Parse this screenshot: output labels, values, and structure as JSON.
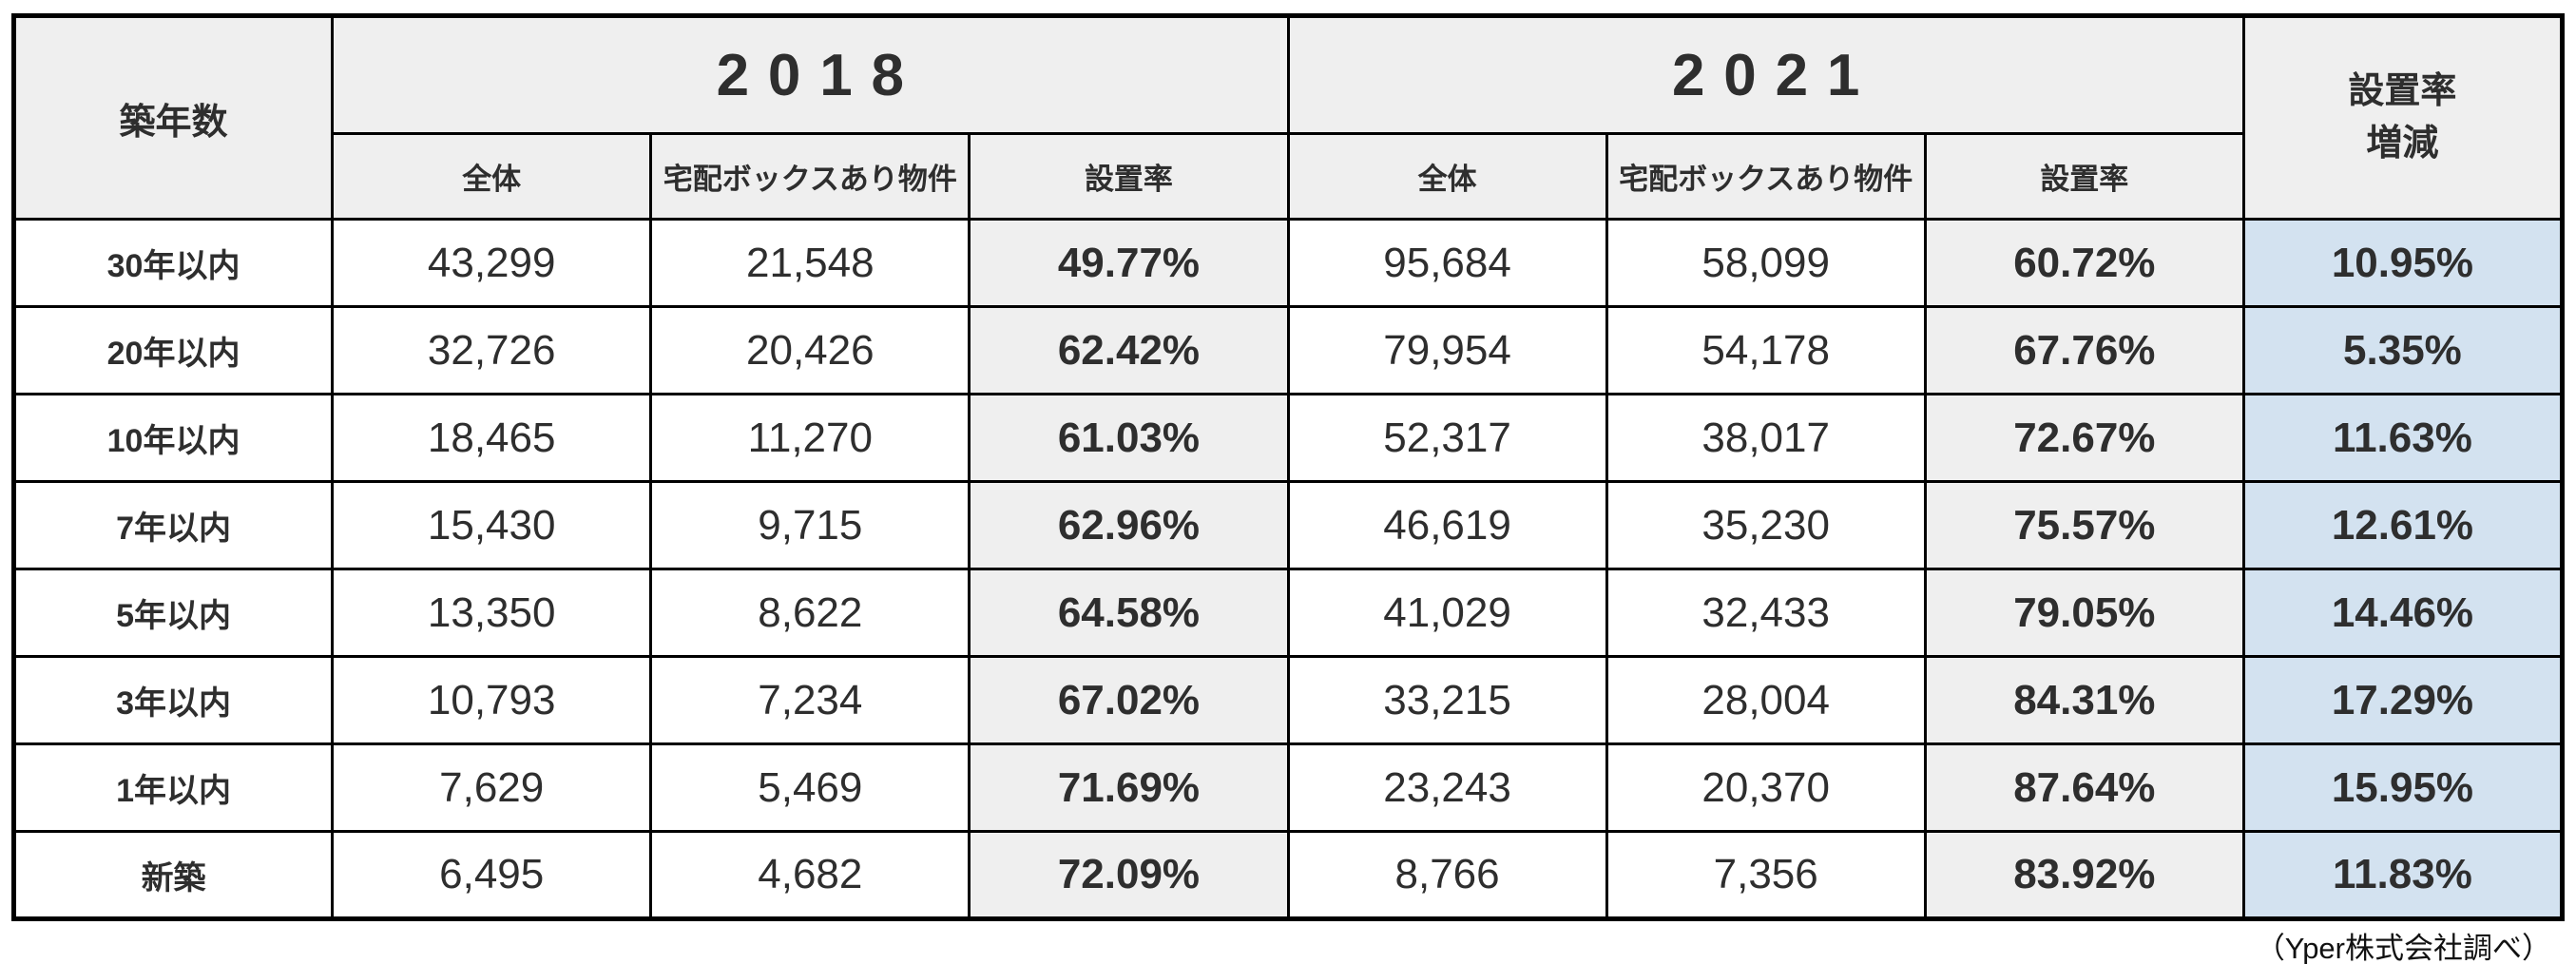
{
  "header": {
    "age_label": "築年数",
    "year_2018": "2018",
    "year_2021": "2021",
    "sub": {
      "total": "全体",
      "box": "宅配ボックスあり物件",
      "rate": "設置率"
    },
    "delta_line1": "設置率",
    "delta_line2": "増減"
  },
  "footer": {
    "source": "（Yper株式会社調べ）"
  },
  "colors": {
    "header_bg": "#efefef",
    "rate_bg": "#efefef",
    "delta_bg": "#d3e2f0",
    "border": "#000000",
    "text": "#2e2e2e"
  },
  "chart_data": {
    "type": "table",
    "title": "築年数別 宅配ボックス設置率（2018年 vs 2021年）",
    "columns": [
      "築年数",
      "2018 全体",
      "2018 宅配ボックスあり物件",
      "2018 設置率",
      "2021 全体",
      "2021 宅配ボックスあり物件",
      "2021 設置率",
      "設置率増減"
    ],
    "rows": [
      [
        "30年以内",
        "43,299",
        "21,548",
        "49.77%",
        "95,684",
        "58,099",
        "60.72%",
        "10.95%"
      ],
      [
        "20年以内",
        "32,726",
        "20,426",
        "62.42%",
        "79,954",
        "54,178",
        "67.76%",
        "5.35%"
      ],
      [
        "10年以内",
        "18,465",
        "11,270",
        "61.03%",
        "52,317",
        "38,017",
        "72.67%",
        "11.63%"
      ],
      [
        "7年以内",
        "15,430",
        "9,715",
        "62.96%",
        "46,619",
        "35,230",
        "75.57%",
        "12.61%"
      ],
      [
        "5年以内",
        "13,350",
        "8,622",
        "64.58%",
        "41,029",
        "32,433",
        "79.05%",
        "14.46%"
      ],
      [
        "3年以内",
        "10,793",
        "7,234",
        "67.02%",
        "33,215",
        "28,004",
        "84.31%",
        "17.29%"
      ],
      [
        "1年以内",
        "7,629",
        "5,469",
        "71.69%",
        "23,243",
        "20,370",
        "87.64%",
        "15.95%"
      ],
      [
        "新築",
        "6,495",
        "4,682",
        "72.09%",
        "8,766",
        "7,356",
        "83.92%",
        "11.83%"
      ]
    ],
    "source_note": "（Yper株式会社調べ）",
    "notes": {
      "rate_columns_background": "light gray",
      "delta_column_background": "light blue",
      "grid": "black solid borders, thick outer frame"
    }
  }
}
